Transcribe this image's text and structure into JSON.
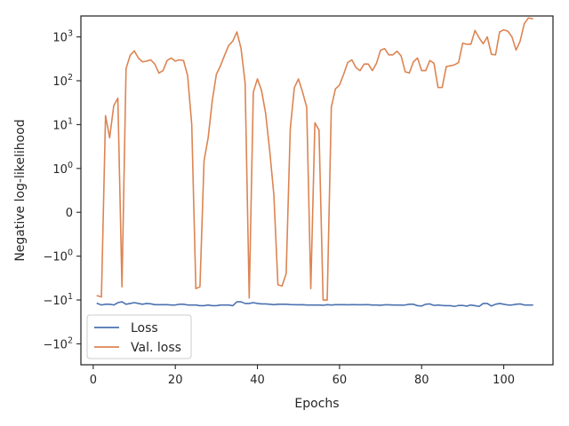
{
  "chart_data": {
    "type": "line",
    "title": "",
    "xlabel": "Epochs",
    "ylabel": "Negative log-likelihood",
    "xlim": [
      -3,
      112
    ],
    "ylim": [
      -300,
      3000
    ],
    "yscale": "symlog",
    "linthresh": 1,
    "x_ticks": [
      0,
      20,
      40,
      60,
      80,
      100
    ],
    "y_ticks": [
      {
        "value": 1000,
        "base": "10",
        "exp": "3"
      },
      {
        "value": 100,
        "base": "10",
        "exp": "2"
      },
      {
        "value": 10,
        "base": "10",
        "exp": "1"
      },
      {
        "value": 1,
        "base": "10",
        "exp": "0"
      },
      {
        "value": 0,
        "base": "0",
        "exp": ""
      },
      {
        "value": -1,
        "base": "−10",
        "exp": "0"
      },
      {
        "value": -10,
        "base": "−10",
        "exp": "1"
      },
      {
        "value": -100,
        "base": "−10",
        "exp": "2"
      }
    ],
    "grid": false,
    "legend_position": "lower-left",
    "series": [
      {
        "name": "Loss",
        "color": "#4c72b0",
        "x": [
          1,
          2,
          3,
          4,
          5,
          6,
          7,
          8,
          9,
          10,
          11,
          12,
          13,
          14,
          15,
          16,
          17,
          18,
          19,
          20,
          21,
          22,
          23,
          24,
          25,
          26,
          27,
          28,
          29,
          30,
          31,
          32,
          33,
          34,
          35,
          36,
          37,
          38,
          39,
          40,
          41,
          42,
          43,
          44,
          45,
          46,
          47,
          48,
          49,
          50,
          51,
          52,
          53,
          54,
          55,
          56,
          57,
          58,
          59,
          60,
          61,
          62,
          63,
          64,
          65,
          66,
          67,
          68,
          69,
          70,
          71,
          72,
          73,
          74,
          75,
          76,
          77,
          78,
          79,
          80,
          81,
          82,
          83,
          84,
          85,
          86,
          87,
          88,
          89,
          90,
          91,
          92,
          93,
          94,
          95,
          96,
          97,
          98,
          99,
          100,
          101,
          102,
          103,
          104,
          105,
          106,
          107
        ],
        "y": [
          -12,
          -13,
          -12.5,
          -12.5,
          -13,
          -11.5,
          -11,
          -12.5,
          -12,
          -11.5,
          -12,
          -12.5,
          -12,
          -12.2,
          -12.8,
          -12.8,
          -12.8,
          -12.8,
          -13,
          -13,
          -12.5,
          -12.5,
          -13,
          -13,
          -13,
          -13.5,
          -13.5,
          -13,
          -13.5,
          -13.5,
          -13,
          -13,
          -13,
          -13.5,
          -11,
          -11,
          -12,
          -12,
          -11.5,
          -12,
          -12.3,
          -12.3,
          -12.5,
          -12.8,
          -12.5,
          -12.5,
          -12.5,
          -12.7,
          -12.8,
          -12.9,
          -12.8,
          -13,
          -13,
          -13,
          -13,
          -13.2,
          -12.8,
          -13,
          -12.8,
          -12.8,
          -12.8,
          -12.9,
          -12.8,
          -12.8,
          -12.9,
          -12.8,
          -12.8,
          -13,
          -13,
          -13.2,
          -12.9,
          -12.9,
          -13,
          -13,
          -13.1,
          -13,
          -12.5,
          -12.5,
          -13.5,
          -13.7,
          -12.5,
          -12.3,
          -13.3,
          -13,
          -13.3,
          -13.5,
          -13.5,
          -14,
          -13.3,
          -13.3,
          -13.8,
          -13,
          -13.5,
          -14,
          -12,
          -12,
          -13.7,
          -12.5,
          -12,
          -12.5,
          -13,
          -13,
          -12.5,
          -12.3,
          -13,
          -13,
          -13
        ]
      },
      {
        "name": "Val. loss",
        "color": "#dd8452",
        "x": [
          1,
          2,
          3,
          4,
          5,
          6,
          7,
          8,
          9,
          10,
          11,
          12,
          13,
          14,
          15,
          16,
          17,
          18,
          19,
          20,
          21,
          22,
          23,
          24,
          25,
          26,
          27,
          28,
          29,
          30,
          31,
          32,
          33,
          34,
          35,
          36,
          37,
          38,
          39,
          40,
          41,
          42,
          43,
          44,
          45,
          46,
          47,
          48,
          49,
          50,
          51,
          52,
          53,
          54,
          55,
          56,
          57,
          58,
          59,
          60,
          61,
          62,
          63,
          64,
          65,
          66,
          67,
          68,
          69,
          70,
          71,
          72,
          73,
          74,
          75,
          76,
          77,
          78,
          79,
          80,
          81,
          82,
          83,
          84,
          85,
          86,
          87,
          88,
          89,
          90,
          91,
          92,
          93,
          94,
          95,
          96,
          97,
          98,
          99,
          100,
          101,
          102,
          103,
          104,
          105,
          106,
          107
        ],
        "y": [
          -8,
          -8.5,
          16,
          5,
          27,
          40,
          -5,
          190,
          380,
          480,
          330,
          270,
          280,
          300,
          240,
          150,
          170,
          290,
          330,
          280,
          300,
          290,
          130,
          10,
          -5.5,
          -5,
          1.5,
          5,
          35,
          140,
          220,
          380,
          640,
          800,
          1300,
          550,
          90,
          -9,
          55,
          110,
          60,
          18,
          2.5,
          0.4,
          -4.5,
          -4.8,
          -2.5,
          8,
          70,
          110,
          55,
          25,
          -5.5,
          11,
          7.5,
          -10,
          -10,
          25,
          65,
          80,
          140,
          260,
          300,
          200,
          170,
          240,
          240,
          170,
          250,
          500,
          540,
          390,
          390,
          470,
          370,
          160,
          150,
          270,
          330,
          170,
          170,
          290,
          250,
          70,
          70,
          210,
          220,
          230,
          260,
          720,
          680,
          680,
          1400,
          950,
          700,
          1000,
          400,
          390,
          1300,
          1450,
          1350,
          1000,
          500,
          800,
          2000,
          2700,
          2600
        ]
      }
    ]
  }
}
